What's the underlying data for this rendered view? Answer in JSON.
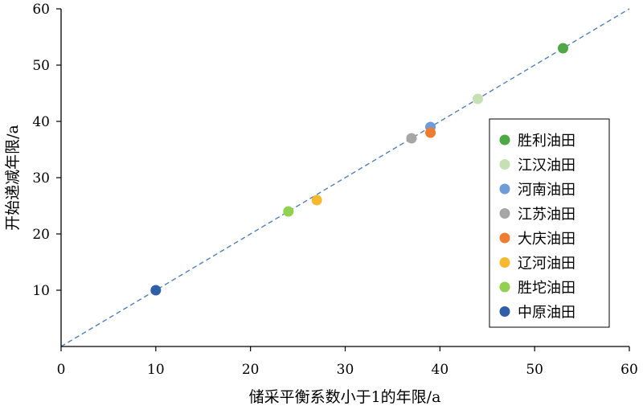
{
  "chart_data": {
    "type": "scatter",
    "xlabel": "储采平衡系数小于1的年限/a",
    "ylabel": "开始递减年限/a",
    "xlim": [
      0,
      60
    ],
    "ylim": [
      0,
      60
    ],
    "xticks": [
      0,
      10,
      20,
      30,
      40,
      50,
      60
    ],
    "yticks": [
      10,
      20,
      30,
      40,
      50,
      60
    ],
    "grid": false,
    "legend_position": "right",
    "reference_line": {
      "style": "dashed",
      "color": "#4f81bd",
      "from": [
        0,
        0
      ],
      "to": [
        60,
        60
      ]
    },
    "series": [
      {
        "name": "胜利油田",
        "color": "#4ea846",
        "points": [
          [
            53,
            53
          ]
        ]
      },
      {
        "name": "江汉油田",
        "color": "#c6e0b4",
        "points": [
          [
            44,
            44
          ]
        ]
      },
      {
        "name": "河南油田",
        "color": "#6f9bd8",
        "points": [
          [
            39,
            39
          ]
        ]
      },
      {
        "name": "江苏油田",
        "color": "#a6a6a6",
        "points": [
          [
            37,
            37
          ]
        ]
      },
      {
        "name": "大庆油田",
        "color": "#ed7d31",
        "points": [
          [
            39,
            38
          ]
        ]
      },
      {
        "name": "辽河油田",
        "color": "#f5b82e",
        "points": [
          [
            27,
            26
          ]
        ]
      },
      {
        "name": "胜坨油田",
        "color": "#92d050",
        "points": [
          [
            24,
            24
          ]
        ]
      },
      {
        "name": "中原油田",
        "color": "#2e5fa8",
        "points": [
          [
            10,
            10
          ]
        ]
      }
    ]
  }
}
